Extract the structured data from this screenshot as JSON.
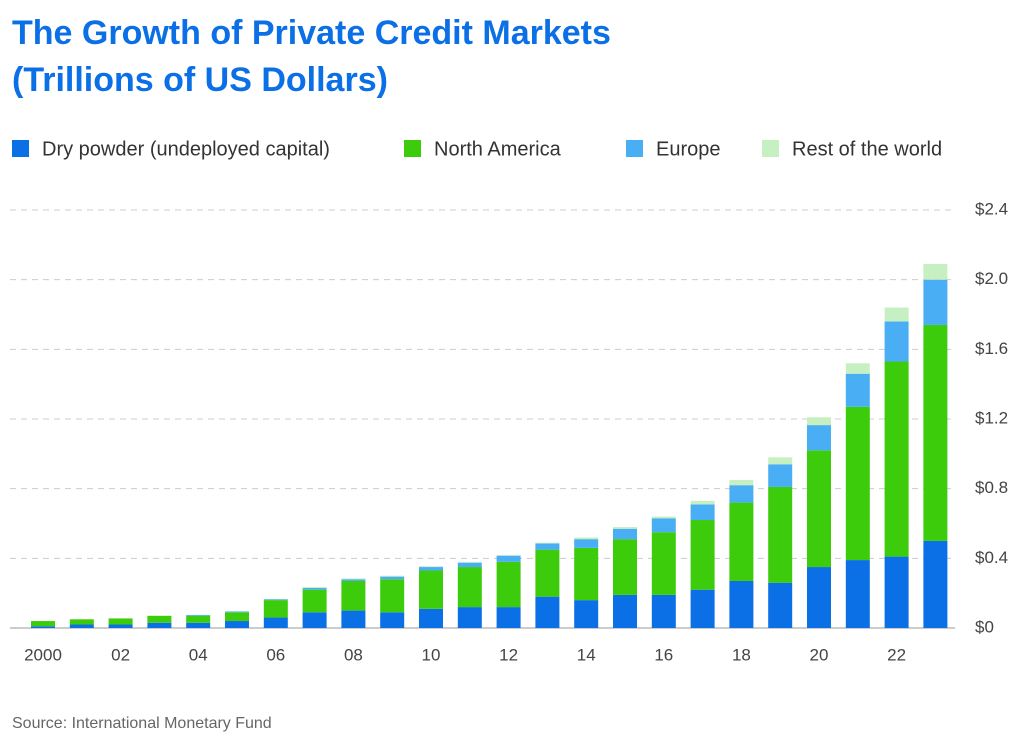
{
  "chart_data": {
    "type": "stacked_bar",
    "title": "The Growth of Private Credit Markets",
    "subtitle": "(Trillions of US Dollars)",
    "source": "Source: International Monetary Fund",
    "categories": [
      "2000",
      null,
      "02",
      null,
      "04",
      null,
      "06",
      null,
      "08",
      null,
      "10",
      null,
      "12",
      null,
      "14",
      null,
      "16",
      null,
      "18",
      null,
      "20",
      null,
      "22",
      null
    ],
    "series": [
      {
        "name": "Dry powder (undeployed capital)",
        "color": "#0b6fe6",
        "values": [
          0.01,
          0.02,
          0.02,
          0.03,
          0.03,
          0.04,
          0.06,
          0.09,
          0.1,
          0.09,
          0.11,
          0.12,
          0.12,
          0.18,
          0.16,
          0.19,
          0.19,
          0.22,
          0.27,
          0.26,
          0.35,
          0.39,
          0.41,
          0.5
        ]
      },
      {
        "name": "North America",
        "color": "#3dcc0c",
        "values": [
          0.03,
          0.03,
          0.035,
          0.04,
          0.04,
          0.05,
          0.1,
          0.13,
          0.17,
          0.19,
          0.22,
          0.23,
          0.26,
          0.27,
          0.3,
          0.32,
          0.36,
          0.4,
          0.45,
          0.55,
          0.67,
          0.88,
          1.12,
          1.24
        ]
      },
      {
        "name": "Europe",
        "color": "#4aaef5",
        "values": [
          0,
          0,
          0,
          0,
          0.005,
          0.005,
          0.005,
          0.01,
          0.01,
          0.015,
          0.02,
          0.025,
          0.035,
          0.035,
          0.05,
          0.06,
          0.08,
          0.09,
          0.1,
          0.13,
          0.145,
          0.19,
          0.23,
          0.26
        ]
      },
      {
        "name": "Rest of the world",
        "color": "#c6f0c2",
        "values": [
          0,
          0,
          0,
          0,
          0,
          0,
          0,
          0.005,
          0.005,
          0.005,
          0.005,
          0.005,
          0.005,
          0.005,
          0.01,
          0.01,
          0.01,
          0.02,
          0.03,
          0.04,
          0.045,
          0.06,
          0.08,
          0.09
        ]
      }
    ],
    "ylim": [
      0,
      2.4
    ],
    "yticks": [
      {
        "value": 0,
        "label": "$0"
      },
      {
        "value": 0.4,
        "label": "$0.4"
      },
      {
        "value": 0.8,
        "label": "$0.8"
      },
      {
        "value": 1.2,
        "label": "$1.2"
      },
      {
        "value": 1.6,
        "label": "$1.6"
      },
      {
        "value": 2.0,
        "label": "$2.0"
      },
      {
        "value": 2.4,
        "label": "$2.4"
      }
    ],
    "grid": true
  }
}
